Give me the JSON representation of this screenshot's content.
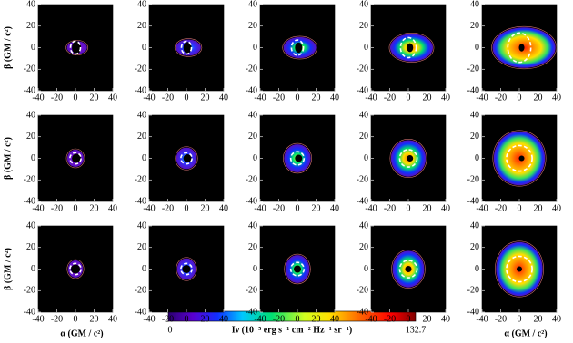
{
  "chart_data": {
    "type": "image-grid",
    "rows": 3,
    "columns": 5,
    "xlim": [
      -40,
      40
    ],
    "ylim": [
      -40,
      40
    ],
    "xticks": [
      -40,
      -20,
      0,
      20,
      40
    ],
    "yticks": [
      -40,
      -20,
      0,
      20,
      40
    ],
    "xlabel": "α (GM / c²)",
    "ylabel": "β (GM / c²)",
    "colorbar": {
      "label": "Iν (10⁻⁵ erg s⁻¹ cm⁻² Hz⁻¹ sr⁻¹)",
      "lim": [
        0,
        132.7
      ],
      "ticks": [
        0,
        132.7
      ]
    }
  }
}
